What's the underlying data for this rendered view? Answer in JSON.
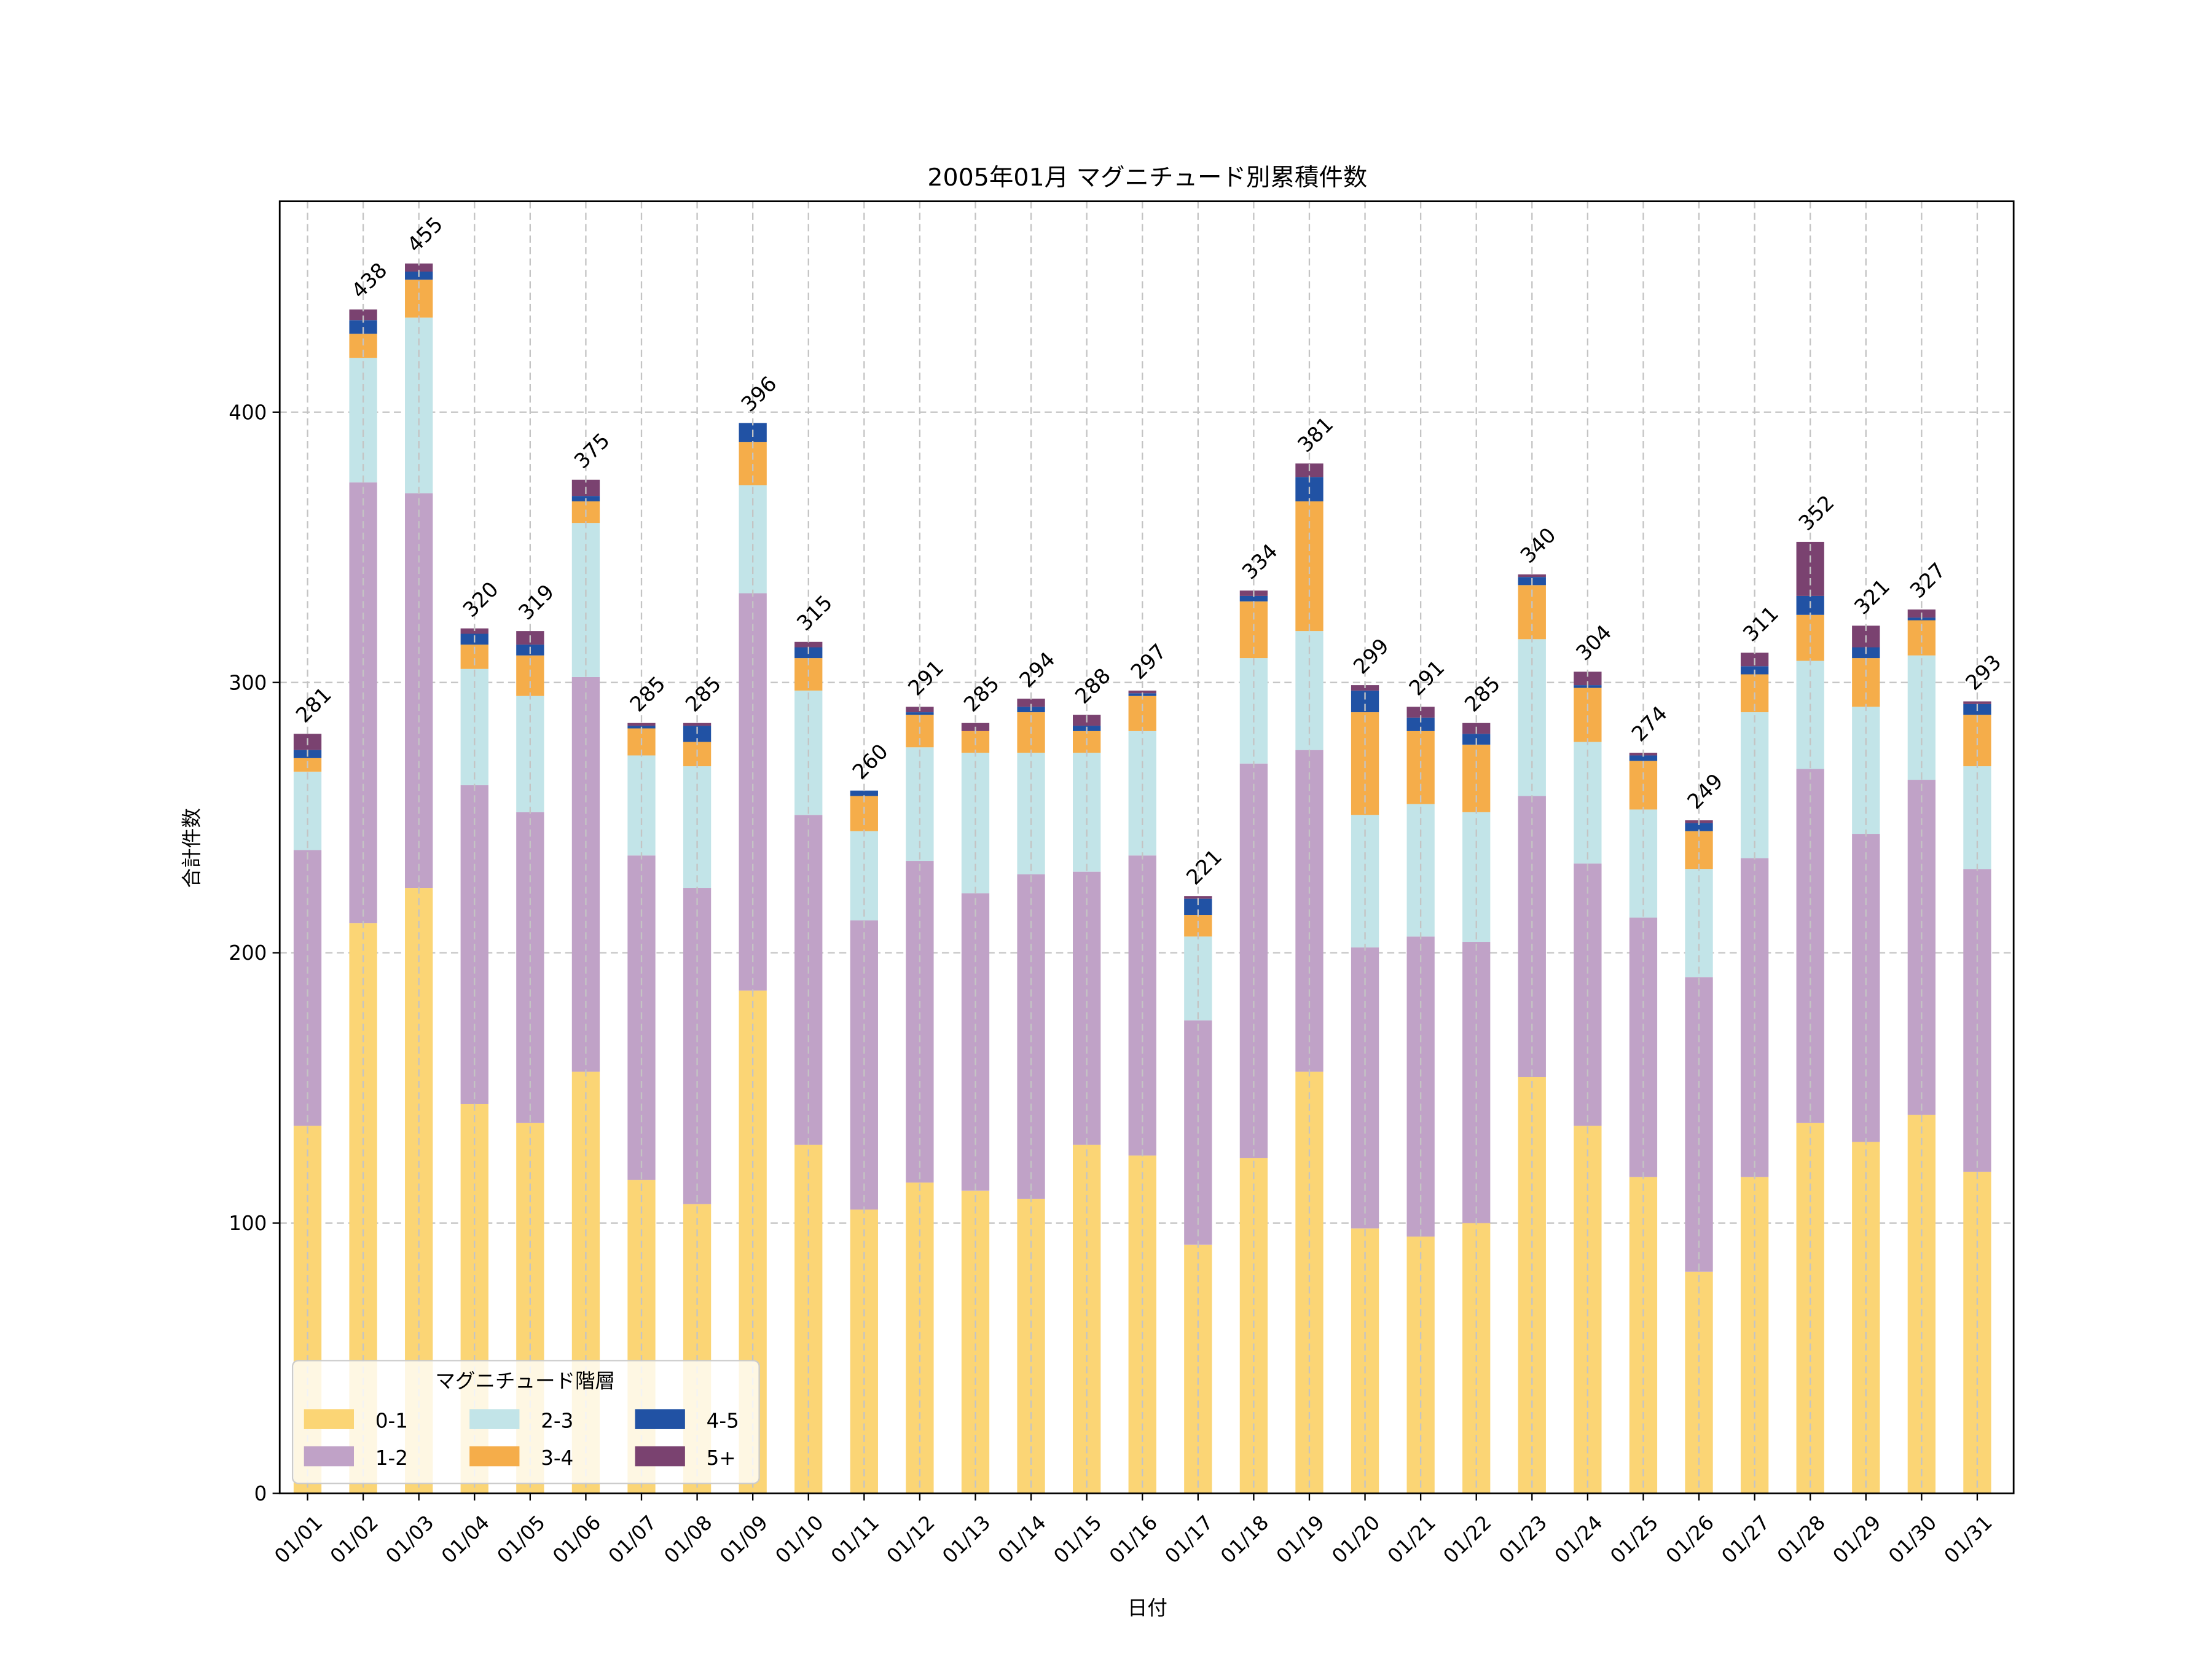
{
  "chart_data": {
    "type": "bar",
    "stacked": true,
    "title": "2005年01月 マグニチュード別累積件数",
    "xlabel": "日付",
    "ylabel": "合計件数",
    "ylim": [
      0,
      478
    ],
    "yticks": [
      0,
      100,
      200,
      300,
      400
    ],
    "grid": true,
    "legend": {
      "title": "マグニチュード階層",
      "placement": "lower-left",
      "columns": 3
    },
    "categories": [
      "01/01",
      "01/02",
      "01/03",
      "01/04",
      "01/05",
      "01/06",
      "01/07",
      "01/08",
      "01/09",
      "01/10",
      "01/11",
      "01/12",
      "01/13",
      "01/14",
      "01/15",
      "01/16",
      "01/17",
      "01/18",
      "01/19",
      "01/20",
      "01/21",
      "01/22",
      "01/23",
      "01/24",
      "01/25",
      "01/26",
      "01/27",
      "01/28",
      "01/29",
      "01/30",
      "01/31"
    ],
    "series": [
      {
        "name": "0-1",
        "color": "#fbd575",
        "values": [
          136,
          211,
          224,
          144,
          137,
          156,
          116,
          107,
          186,
          129,
          105,
          115,
          112,
          109,
          129,
          125,
          92,
          124,
          156,
          98,
          95,
          100,
          154,
          136,
          117,
          82,
          117,
          137,
          130,
          140,
          119
        ]
      },
      {
        "name": "1-2",
        "color": "#c0a2c7",
        "values": [
          102,
          163,
          146,
          118,
          115,
          146,
          120,
          117,
          147,
          122,
          107,
          119,
          110,
          120,
          101,
          111,
          83,
          146,
          119,
          104,
          111,
          104,
          104,
          97,
          96,
          109,
          118,
          131,
          114,
          124,
          112
        ]
      },
      {
        "name": "2-3",
        "color": "#c2e4e8",
        "values": [
          29,
          46,
          65,
          43,
          43,
          57,
          37,
          45,
          40,
          46,
          33,
          42,
          52,
          45,
          44,
          46,
          31,
          39,
          44,
          49,
          49,
          48,
          58,
          45,
          40,
          40,
          54,
          40,
          47,
          46,
          38
        ]
      },
      {
        "name": "3-4",
        "color": "#f5ad4a",
        "values": [
          5,
          9,
          14,
          9,
          15,
          8,
          10,
          9,
          16,
          12,
          13,
          12,
          8,
          15,
          8,
          13,
          8,
          21,
          48,
          38,
          27,
          25,
          20,
          20,
          18,
          14,
          14,
          17,
          18,
          13,
          19
        ]
      },
      {
        "name": "4-5",
        "color": "#2152a4",
        "values": [
          3,
          5,
          3,
          4,
          4,
          2,
          1,
          6,
          7,
          4,
          2,
          1,
          0,
          2,
          2,
          1,
          6,
          2,
          9,
          8,
          5,
          4,
          3,
          1,
          2,
          3,
          3,
          7,
          4,
          1,
          4
        ]
      },
      {
        "name": "5+",
        "color": "#7a4270",
        "values": [
          6,
          4,
          3,
          2,
          5,
          6,
          1,
          1,
          0,
          2,
          0,
          2,
          3,
          3,
          4,
          1,
          1,
          2,
          5,
          2,
          4,
          4,
          1,
          5,
          1,
          1,
          5,
          20,
          8,
          3,
          1
        ]
      }
    ],
    "totals": [
      281,
      438,
      455,
      320,
      319,
      375,
      285,
      285,
      396,
      315,
      260,
      291,
      285,
      294,
      288,
      297,
      221,
      334,
      381,
      299,
      291,
      285,
      340,
      304,
      274,
      249,
      311,
      352,
      321,
      327,
      293
    ]
  }
}
